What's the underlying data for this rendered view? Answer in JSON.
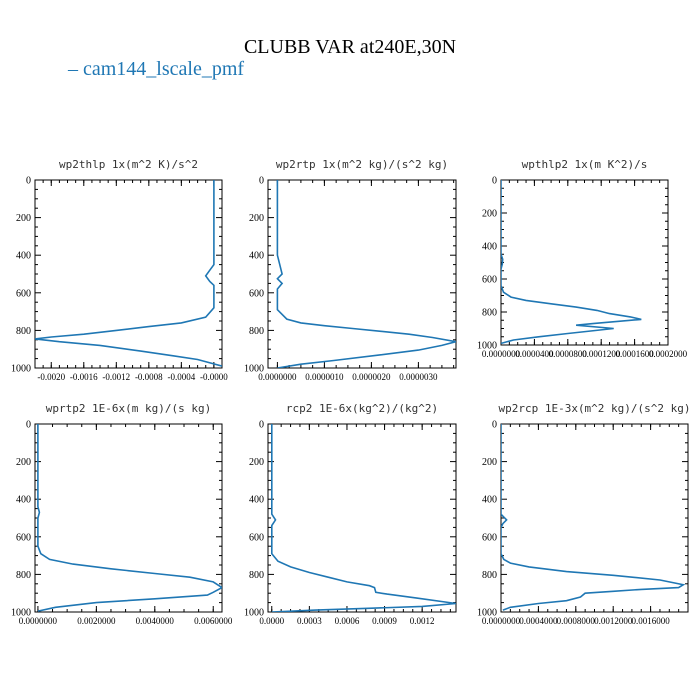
{
  "figure": {
    "title": "CLUBB VAR at240E,30N",
    "legend_label": "– cam144_lscale_pmf",
    "line_color": "#1f77b4"
  },
  "chart_data": [
    {
      "type": "line",
      "title": "wp2thlp   1x(m^2 K)/s^2",
      "ylim": [
        1000,
        0
      ],
      "yticks": [
        0,
        200,
        400,
        600,
        800,
        1000
      ],
      "xlim": [
        -0.0022,
        0.0001
      ],
      "xtick_labels": [
        "-0.0020",
        "-0.0016",
        "-0.0012",
        "-0.0008",
        "-0.0004",
        "-0.0000"
      ],
      "xtick_values": [
        -0.002,
        -0.0016,
        -0.0012,
        -0.0008,
        -0.0004,
        0.0
      ],
      "x": [
        0.0,
        0.0,
        0.0,
        0.0,
        -5e-05,
        -0.0001,
        -5e-05,
        0.0,
        0.0,
        -0.0001,
        -0.0004,
        -0.0008,
        -0.0012,
        -0.0016,
        -0.002,
        -0.0022,
        -0.0019,
        -0.0014,
        -0.0009,
        -0.0005,
        -0.0002,
        0.0001
      ],
      "y": [
        0,
        150,
        300,
        450,
        480,
        510,
        540,
        560,
        680,
        730,
        760,
        780,
        800,
        820,
        835,
        845,
        860,
        880,
        910,
        935,
        955,
        990
      ]
    },
    {
      "type": "line",
      "title": "wp2rtp   1x(m^2 kg)/(s^2 kg)",
      "ylim": [
        1000,
        0
      ],
      "yticks": [
        0,
        200,
        400,
        600,
        800,
        1000
      ],
      "xlim": [
        -2e-07,
        3.8e-06
      ],
      "xtick_labels": [
        "0.0000000",
        "0.0000010",
        "0.0000020",
        "0.0000030"
      ],
      "xtick_values": [
        0.0,
        1e-06,
        2e-06,
        3e-06
      ],
      "x": [
        0.0,
        0.0,
        0.0,
        1e-07,
        0.0,
        1e-07,
        0.0,
        0.0,
        2e-07,
        5e-07,
        1e-06,
        1.6e-06,
        2.2e-06,
        2.8e-06,
        3.3e-06,
        3.8e-06,
        3.5e-06,
        3e-06,
        2.2e-06,
        1.2e-06,
        5e-07,
        0.0
      ],
      "y": [
        0,
        200,
        400,
        500,
        525,
        550,
        580,
        690,
        740,
        760,
        775,
        790,
        805,
        820,
        838,
        860,
        880,
        905,
        930,
        960,
        980,
        1000
      ]
    },
    {
      "type": "line",
      "title": "wpthlp2   1x(m K^2)/s",
      "ylim": [
        1000,
        0
      ],
      "yticks": [
        0,
        200,
        400,
        600,
        800,
        1000
      ],
      "xlim": [
        0.0,
        0.0002
      ],
      "xtick_labels": [
        "0.0000000",
        "0.0000400",
        "0.0000800",
        "0.0001200",
        "0.0001600",
        "0.0002000"
      ],
      "xtick_values": [
        0.0,
        4e-05,
        8e-05,
        0.00012,
        0.00016,
        0.0002
      ],
      "x": [
        0.0,
        0.0,
        0.0,
        2e-06,
        1.5e-06,
        0.0,
        0.0,
        3e-06,
        1.2e-05,
        3e-05,
        6e-05,
        9e-05,
        0.000115,
        0.00013,
        0.000155,
        0.000168,
        0.00011,
        9e-05,
        0.000135,
        8e-05,
        4.5e-05,
        1.5e-05,
        0.0
      ],
      "y": [
        0,
        200,
        450,
        480,
        510,
        540,
        640,
        680,
        710,
        730,
        750,
        770,
        790,
        810,
        830,
        845,
        870,
        880,
        900,
        930,
        950,
        970,
        990
      ]
    },
    {
      "type": "line",
      "title": "wprtp2   1E-6x(m kg)/(s kg)",
      "ylim": [
        1000,
        0
      ],
      "yticks": [
        0,
        200,
        400,
        600,
        800,
        1000
      ],
      "xlim": [
        -0.0001,
        0.0063
      ],
      "xtick_labels": [
        "0.0000000",
        "0.0020000",
        "0.0040000",
        "0.0060000"
      ],
      "xtick_values": [
        0.0,
        0.002,
        0.004,
        0.006
      ],
      "x": [
        0.0,
        0.0,
        0.0,
        5e-05,
        0.0,
        0.0,
        0.0001,
        0.0004,
        0.0012,
        0.0025,
        0.004,
        0.0052,
        0.006,
        0.0063,
        0.006,
        0.0058,
        0.004,
        0.002,
        0.0006,
        0.0
      ],
      "y": [
        0,
        300,
        440,
        470,
        500,
        650,
        690,
        720,
        745,
        770,
        795,
        815,
        840,
        870,
        895,
        910,
        930,
        950,
        975,
        995
      ]
    },
    {
      "type": "line",
      "title": "rcp2   1E-6x(kg^2)/(kg^2)",
      "ylim": [
        1000,
        0
      ],
      "yticks": [
        0,
        200,
        400,
        600,
        800,
        1000
      ],
      "xlim": [
        -3e-05,
        0.00147
      ],
      "xtick_labels": [
        "0.0000",
        "0.0003",
        "0.0006",
        "0.0009",
        "0.0012"
      ],
      "xtick_values": [
        0.0,
        0.0003,
        0.0006,
        0.0009,
        0.0012
      ],
      "x": [
        0.0,
        0.0,
        0.0,
        3e-05,
        0.0,
        0.0,
        5e-05,
        0.00015,
        0.0003,
        0.00045,
        0.0006,
        0.00078,
        0.00082,
        0.00083,
        0.00092,
        0.00115,
        0.00147,
        0.0012,
        0.0008,
        0.00035,
        0.0
      ],
      "y": [
        0,
        300,
        480,
        510,
        540,
        690,
        730,
        760,
        790,
        815,
        840,
        860,
        870,
        895,
        905,
        925,
        955,
        970,
        980,
        990,
        1000
      ]
    },
    {
      "type": "line",
      "title": "wp2rcp   1E-3x(m^2 kg)/(s^2 kg)",
      "ylim": [
        1000,
        0
      ],
      "yticks": [
        0,
        200,
        400,
        600,
        800,
        1000
      ],
      "xlim": [
        0.0,
        0.002
      ],
      "xtick_labels": [
        "0.0000000",
        "0.0004000",
        "0.0008000",
        "0.0012000",
        "0.0016000"
      ],
      "xtick_values": [
        0.0,
        0.0004,
        0.0008,
        0.0012,
        0.0016
      ],
      "x": [
        0.0,
        0.0,
        0.0,
        3e-05,
        6e-05,
        2e-05,
        0.0,
        0.0,
        3e-05,
        0.0001,
        0.0003,
        0.0007,
        0.0012,
        0.0017,
        0.00195,
        0.0019,
        0.0015,
        0.0012,
        0.0009,
        0.00085,
        0.0007,
        0.0004,
        0.0001,
        2e-05
      ],
      "y": [
        0,
        200,
        480,
        495,
        510,
        530,
        550,
        690,
        720,
        740,
        760,
        785,
        805,
        830,
        855,
        870,
        880,
        890,
        900,
        920,
        940,
        955,
        975,
        990
      ]
    }
  ]
}
